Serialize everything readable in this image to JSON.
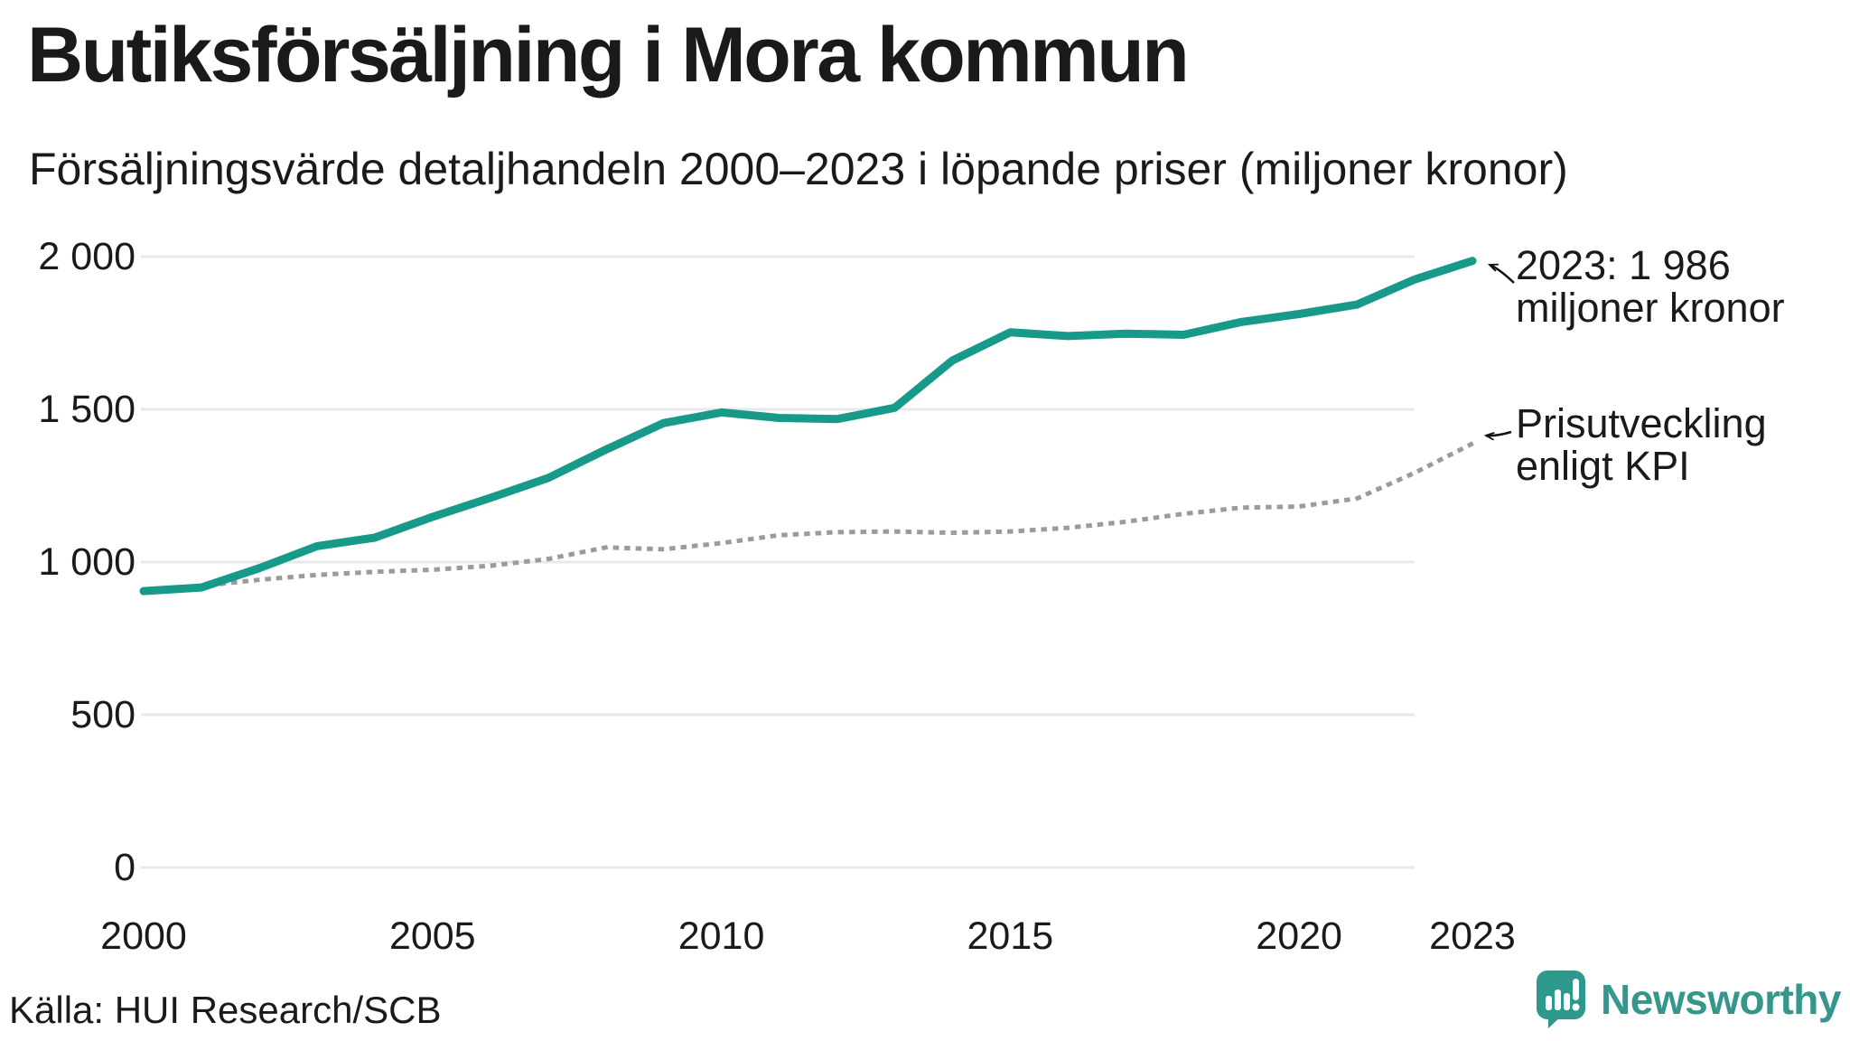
{
  "header": {
    "title": "Butiksförsäljning i Mora kommun",
    "subtitle": "Försäljningsvärde detaljhandeln 2000–2023 i löpande priser (miljoner kronor)"
  },
  "annotations": {
    "latest": {
      "line1": "2023: 1 986",
      "line2": "miljoner kronor"
    },
    "kpi": {
      "line1": "Prisutveckling",
      "line2": "enligt KPI"
    }
  },
  "footer": {
    "source": "Källa: HUI Research/SCB",
    "brand": "Newsworthy",
    "brand_icon": "newsworthy-bar-chart-speech-bubble-icon"
  },
  "colors": {
    "series_main": "#189a8b",
    "series_kpi": "#9b9b9b",
    "grid": "#e8e8e8",
    "text": "#1a1a1a",
    "arrow": "#111111",
    "brand": "#35968c",
    "background": "#ffffff"
  },
  "chart_data": {
    "type": "line",
    "title": "Butiksförsäljning i Mora kommun",
    "subtitle": "Försäljningsvärde detaljhandeln 2000–2023 i löpande priser (miljoner kronor)",
    "xlabel": "",
    "ylabel": "miljoner kronor",
    "xlim": [
      2000,
      2023
    ],
    "ylim": [
      0,
      2100
    ],
    "grid": "horizontal-only",
    "legend_position": "inline-annotations",
    "x": [
      2000,
      2001,
      2002,
      2003,
      2004,
      2005,
      2006,
      2007,
      2008,
      2009,
      2010,
      2011,
      2012,
      2013,
      2014,
      2015,
      2016,
      2017,
      2018,
      2019,
      2020,
      2021,
      2022,
      2023
    ],
    "series": [
      {
        "name": "Försäljningsvärde i löpande priser",
        "style": "solid",
        "color": "#189a8b",
        "values": [
          905,
          917,
          980,
          1052,
          1080,
          1148,
          1210,
          1275,
          1368,
          1455,
          1490,
          1472,
          1468,
          1505,
          1660,
          1752,
          1740,
          1748,
          1744,
          1786,
          1812,
          1843,
          1925,
          1986
        ]
      },
      {
        "name": "Prisutveckling enligt KPI",
        "style": "dotted",
        "color": "#9b9b9b",
        "values": [
          905,
          922,
          942,
          958,
          968,
          975,
          988,
          1010,
          1048,
          1042,
          1062,
          1088,
          1098,
          1100,
          1096,
          1100,
          1112,
          1132,
          1158,
          1178,
          1182,
          1208,
          1292,
          1388
        ]
      }
    ],
    "y_ticks": [
      {
        "label": "2 000",
        "value": 2000
      },
      {
        "label": "1 500",
        "value": 1500
      },
      {
        "label": "1 000",
        "value": 1000
      },
      {
        "label": "500",
        "value": 500
      },
      {
        "label": "0",
        "value": 0
      }
    ],
    "x_ticks": [
      {
        "label": "2000",
        "value": 2000
      },
      {
        "label": "2005",
        "value": 2005
      },
      {
        "label": "2010",
        "value": 2010
      },
      {
        "label": "2015",
        "value": 2015
      },
      {
        "label": "2020",
        "value": 2020
      },
      {
        "label": "2023",
        "value": 2023
      }
    ],
    "annotations": [
      {
        "text": "2023: 1 986 miljoner kronor",
        "series": "Försäljningsvärde i löpande priser",
        "x": 2023,
        "y": 1986
      },
      {
        "text": "Prisutveckling enligt KPI",
        "series": "Prisutveckling enligt KPI",
        "x": 2023,
        "y": 1388
      }
    ]
  }
}
